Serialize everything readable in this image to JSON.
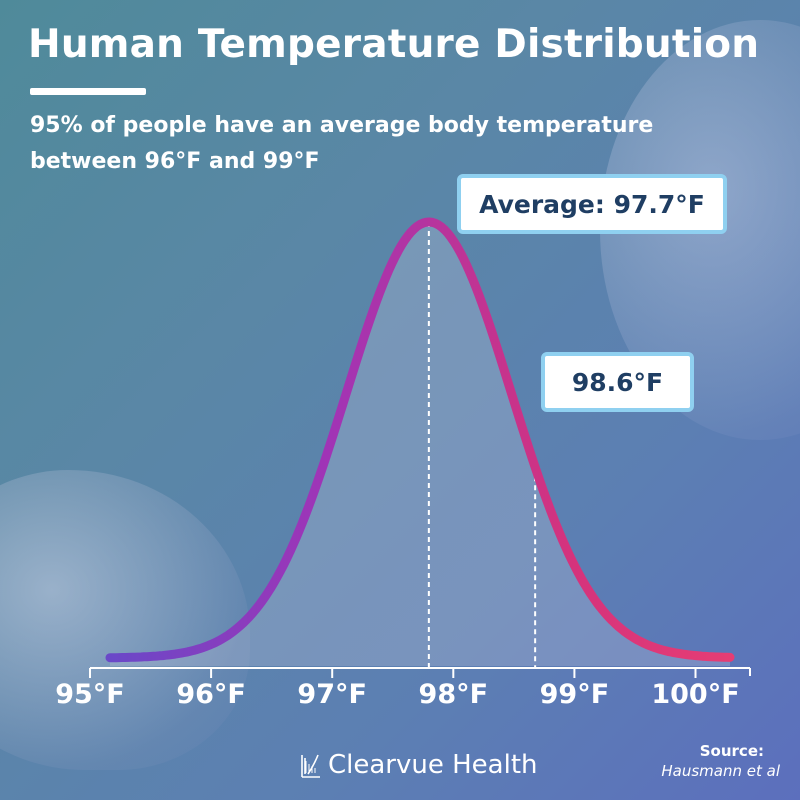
{
  "chart_data": {
    "type": "area",
    "title": "Human Temperature Distribution",
    "subtitle": "95% of people have an average body temperature between 96°F and 99°F",
    "distribution": {
      "kind": "normal",
      "mean": 97.7,
      "sd": 0.7
    },
    "x": [
      95.0,
      95.25,
      95.5,
      95.75,
      96.0,
      96.25,
      96.5,
      96.75,
      97.0,
      97.25,
      97.5,
      97.75,
      98.0,
      98.25,
      98.5,
      98.75,
      99.0,
      99.25,
      99.5,
      99.75,
      100.0,
      100.25
    ],
    "xlim": [
      95,
      100.25
    ],
    "x_ticks": [
      95,
      96,
      97,
      98,
      99,
      100
    ],
    "tick_labels": [
      "95°F",
      "96°F",
      "97°F",
      "98°F",
      "99°F",
      "100°F"
    ],
    "markers": [
      {
        "x": 97.7,
        "label": "Average: 97.7°F"
      },
      {
        "x": 98.6,
        "label": "98.6°F"
      }
    ],
    "line_gradient": [
      "#6a48c8",
      "#a034b6",
      "#d5337c",
      "#e63d74"
    ],
    "grid": false,
    "legend": "none"
  },
  "branding": {
    "name": "Clearvue Health",
    "icon": "book-logo-icon"
  },
  "source": {
    "label": "Source:",
    "value": "Hausmann et al"
  },
  "colors": {
    "callout_border": "#8fd0f0",
    "callout_text": "#1f3e63",
    "text": "#ffffff"
  }
}
